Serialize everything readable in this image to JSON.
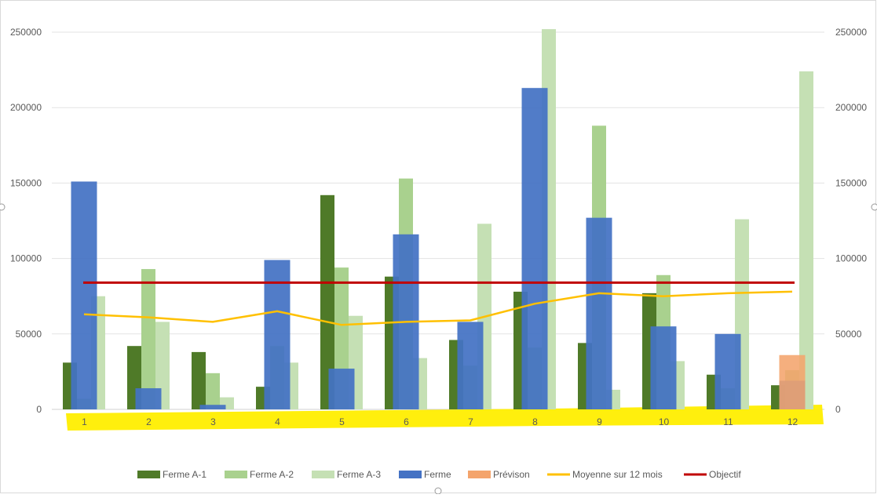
{
  "chart_data": {
    "type": "bar",
    "title": "",
    "xlabel": "",
    "ylabel": "",
    "ylim": [
      0,
      250000
    ],
    "y_ticks": [
      0,
      50000,
      100000,
      150000,
      200000,
      250000
    ],
    "y_tick_labels": [
      "0",
      "50000",
      "100000",
      "150000",
      "200000",
      "250000"
    ],
    "secondary_ylim": [
      0,
      250000
    ],
    "grid": true,
    "legend_position": "bottom",
    "categories": [
      "1",
      "2",
      "3",
      "4",
      "5",
      "6",
      "7",
      "8",
      "9",
      "10",
      "11",
      "12"
    ],
    "series": [
      {
        "name": "Ferme A-1",
        "kind": "bar",
        "color": "#4f7a28",
        "values": [
          31000,
          42000,
          38000,
          15000,
          142000,
          88000,
          46000,
          78000,
          44000,
          77000,
          23000,
          16000
        ]
      },
      {
        "name": "Ferme A-2",
        "kind": "bar",
        "color": "#a9d18e",
        "values": [
          7000,
          93000,
          24000,
          42000,
          94000,
          153000,
          29000,
          41000,
          188000,
          89000,
          14000,
          26000
        ]
      },
      {
        "name": "Ferme A-3",
        "kind": "bar",
        "color": "#c5e0b4",
        "values": [
          75000,
          58000,
          8000,
          31000,
          62000,
          34000,
          123000,
          252000,
          13000,
          32000,
          126000,
          224000
        ]
      },
      {
        "name": "Ferme",
        "kind": "bar",
        "color": "#4472c4",
        "values": [
          151000,
          14000,
          3000,
          99000,
          27000,
          116000,
          58000,
          213000,
          127000,
          55000,
          50000,
          19000
        ]
      },
      {
        "name": "Prévison",
        "kind": "bar",
        "color": "#f4a46c",
        "values": [
          null,
          null,
          null,
          null,
          null,
          null,
          null,
          null,
          null,
          null,
          null,
          36000
        ]
      },
      {
        "name": "Moyenne sur 12 mois",
        "kind": "line",
        "color": "#ffc000",
        "values": [
          63000,
          61000,
          58000,
          65000,
          56000,
          58000,
          59000,
          70000,
          77000,
          75000,
          77000,
          78000
        ]
      },
      {
        "name": "Objectif",
        "kind": "line",
        "color": "#c00000",
        "values": [
          84000,
          84000,
          84000,
          84000,
          84000,
          84000,
          84000,
          84000,
          84000,
          84000,
          84000,
          84000
        ]
      }
    ]
  }
}
